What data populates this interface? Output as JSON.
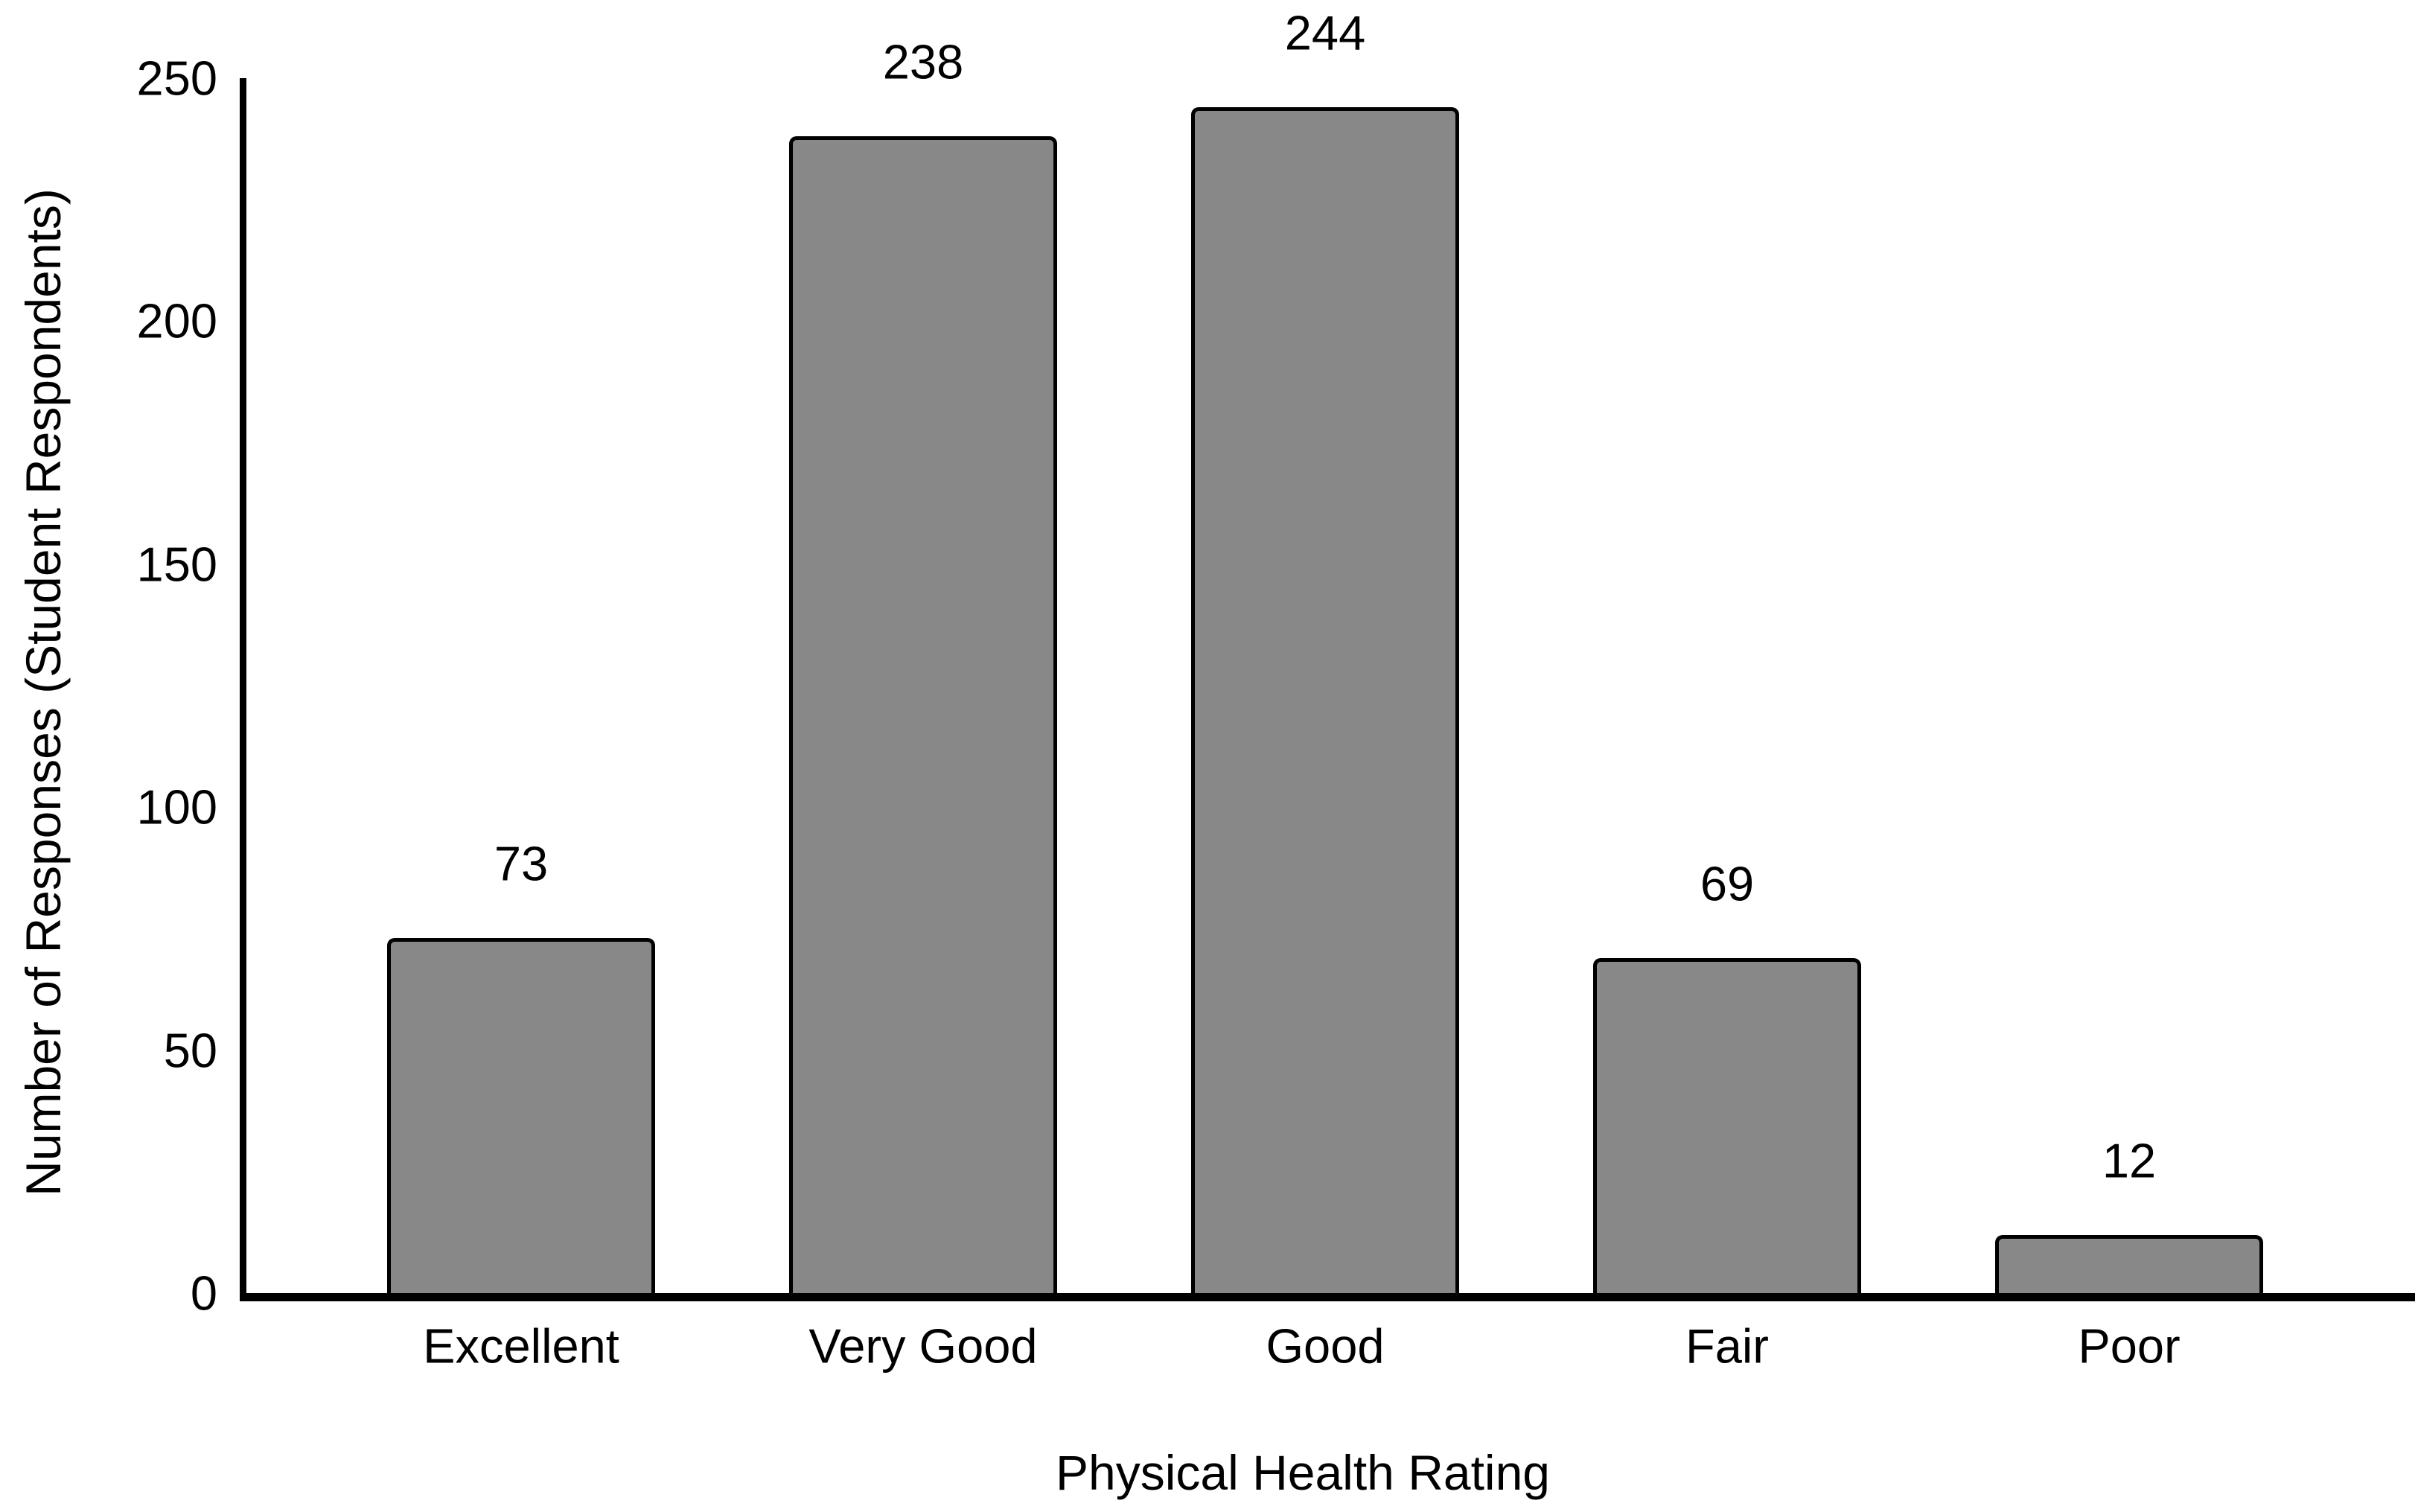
{
  "chart_data": {
    "type": "bar",
    "title": "",
    "categories": [
      "Excellent",
      "Very Good",
      "Good",
      "Fair",
      "Poor"
    ],
    "values": [
      73,
      238,
      244,
      69,
      12
    ],
    "xlabel": "Physical Health Rating",
    "ylabel": "Number of Responses (Student Respondents)",
    "ylim": [
      0,
      250
    ],
    "yticks": [
      0,
      50,
      100,
      150,
      200,
      250
    ],
    "grid": false,
    "legend_position": "none",
    "colors": {
      "background": "#ffffff",
      "bar_fill": "#888888",
      "bar_border": "#000000",
      "axis": "#000000",
      "text": "#000000"
    }
  }
}
